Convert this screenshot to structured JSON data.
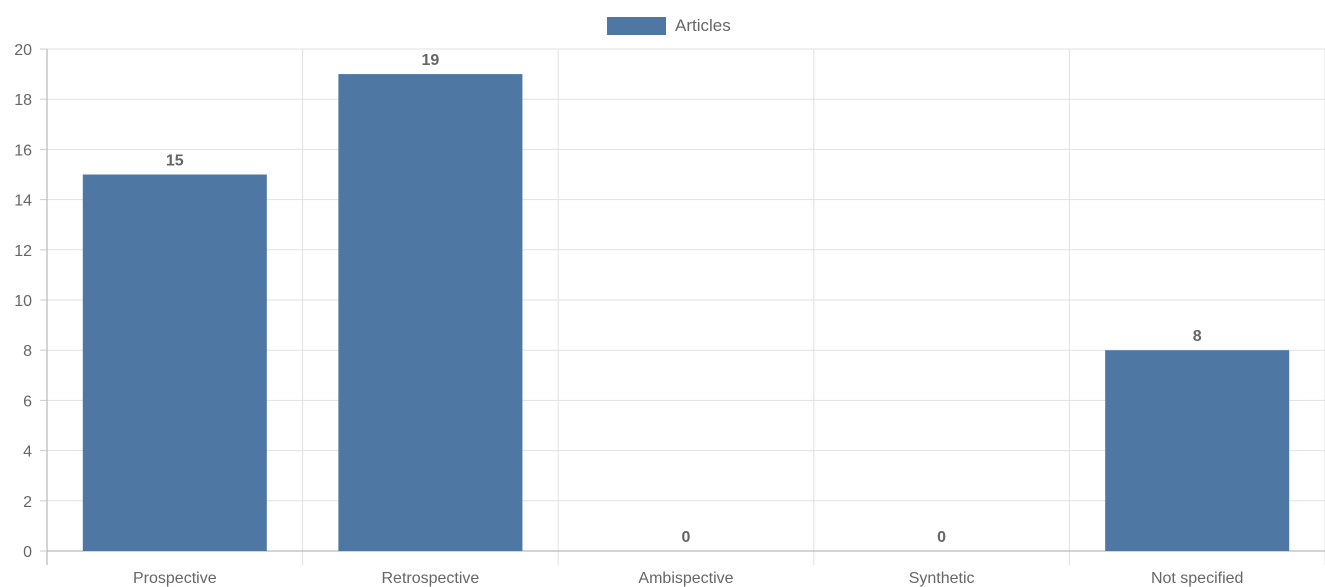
{
  "chart_data": {
    "type": "bar",
    "categories": [
      "Prospective",
      "Retrospective",
      "Ambispective",
      "Synthetic",
      "Not specified"
    ],
    "series": [
      {
        "name": "Articles",
        "values": [
          15,
          19,
          0,
          0,
          8
        ],
        "color": "#4e77a4"
      }
    ],
    "ylim": [
      0,
      20
    ],
    "yticks": [
      0,
      2,
      4,
      6,
      8,
      10,
      12,
      14,
      16,
      18,
      20
    ],
    "grid": true,
    "legend_position": "top-center",
    "data_labels": true
  }
}
